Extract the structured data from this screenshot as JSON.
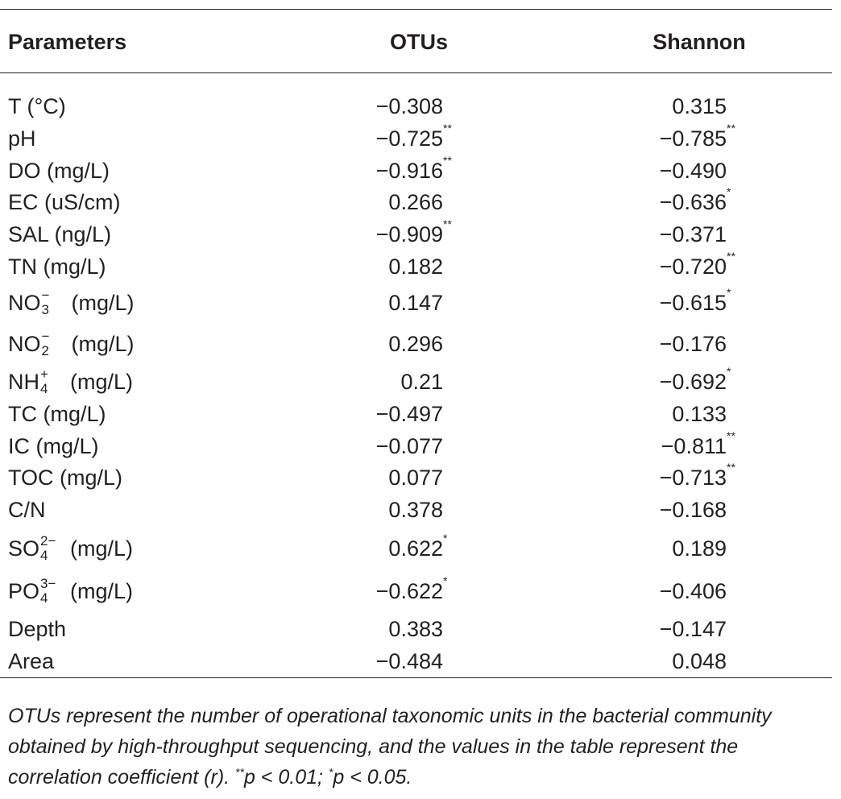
{
  "header": {
    "parameters": "Parameters",
    "otus": "OTUs",
    "shannon": "Shannon"
  },
  "rows": [
    {
      "param": "T (°C)",
      "otus": "−0.308",
      "otus_sig": "",
      "shannon": "0.315",
      "shannon_sig": ""
    },
    {
      "param": "pH",
      "otus": "−0.725",
      "otus_sig": "**",
      "shannon": "−0.785",
      "shannon_sig": "**"
    },
    {
      "param": "DO (mg/L)",
      "otus": "−0.916",
      "otus_sig": "**",
      "shannon": "−0.490",
      "shannon_sig": ""
    },
    {
      "param": "EC (uS/cm)",
      "otus": "0.266",
      "otus_sig": "",
      "shannon": "−0.636",
      "shannon_sig": "*"
    },
    {
      "param": "SAL (ng/L)",
      "otus": "−0.909",
      "otus_sig": "**",
      "shannon": "−0.371",
      "shannon_sig": ""
    },
    {
      "param": "TN (mg/L)",
      "otus": "0.182",
      "otus_sig": "",
      "shannon": "−0.720",
      "shannon_sig": "**"
    },
    {
      "chem_base": "NO",
      "chem_sup": "−",
      "chem_sub": "3",
      "unit": "(mg/L)",
      "otus": "0.147",
      "otus_sig": "",
      "shannon": "−0.615",
      "shannon_sig": "*"
    },
    {
      "chem_base": "NO",
      "chem_sup": "−",
      "chem_sub": "2",
      "unit": "(mg/L)",
      "otus": "0.296",
      "otus_sig": "",
      "shannon": "−0.176",
      "shannon_sig": ""
    },
    {
      "chem_base": "NH",
      "chem_sup": "+",
      "chem_sub": "4",
      "unit": "(mg/L)",
      "otus": "0.21",
      "otus_sig": "",
      "shannon": "−0.692",
      "shannon_sig": "*"
    },
    {
      "param": "TC (mg/L)",
      "otus": "−0.497",
      "otus_sig": "",
      "shannon": "0.133",
      "shannon_sig": ""
    },
    {
      "param": "IC (mg/L)",
      "otus": "−0.077",
      "otus_sig": "",
      "shannon": "−0.811",
      "shannon_sig": "**"
    },
    {
      "param": "TOC (mg/L)",
      "otus": "0.077",
      "otus_sig": "",
      "shannon": "−0.713",
      "shannon_sig": "**"
    },
    {
      "param": "C/N",
      "otus": "0.378",
      "otus_sig": "",
      "shannon": "−0.168",
      "shannon_sig": ""
    },
    {
      "chem_base": "SO",
      "chem_sup": "2−",
      "chem_sub": "4",
      "unit": "(mg/L)",
      "otus": "0.622",
      "otus_sig": "*",
      "shannon": "0.189",
      "shannon_sig": ""
    },
    {
      "chem_base": "PO",
      "chem_sup": "3−",
      "chem_sub": "4",
      "unit": "(mg/L)",
      "otus": "−0.622",
      "otus_sig": "*",
      "shannon": "−0.406",
      "shannon_sig": ""
    },
    {
      "param": "Depth",
      "otus": "0.383",
      "otus_sig": "",
      "shannon": "−0.147",
      "shannon_sig": ""
    },
    {
      "param": "Area",
      "otus": "−0.484",
      "otus_sig": "",
      "shannon": "0.048",
      "shannon_sig": ""
    }
  ],
  "footnote": {
    "text": "OTUs represent the number of operational taxonomic units in the bacterial community obtained by high-throughput sequencing, and the values in the table represent the correlation coefficient (r). ",
    "sig1": "**",
    "p1": "p < 0.01; ",
    "sig2": "*",
    "p2": "p < 0.05."
  }
}
